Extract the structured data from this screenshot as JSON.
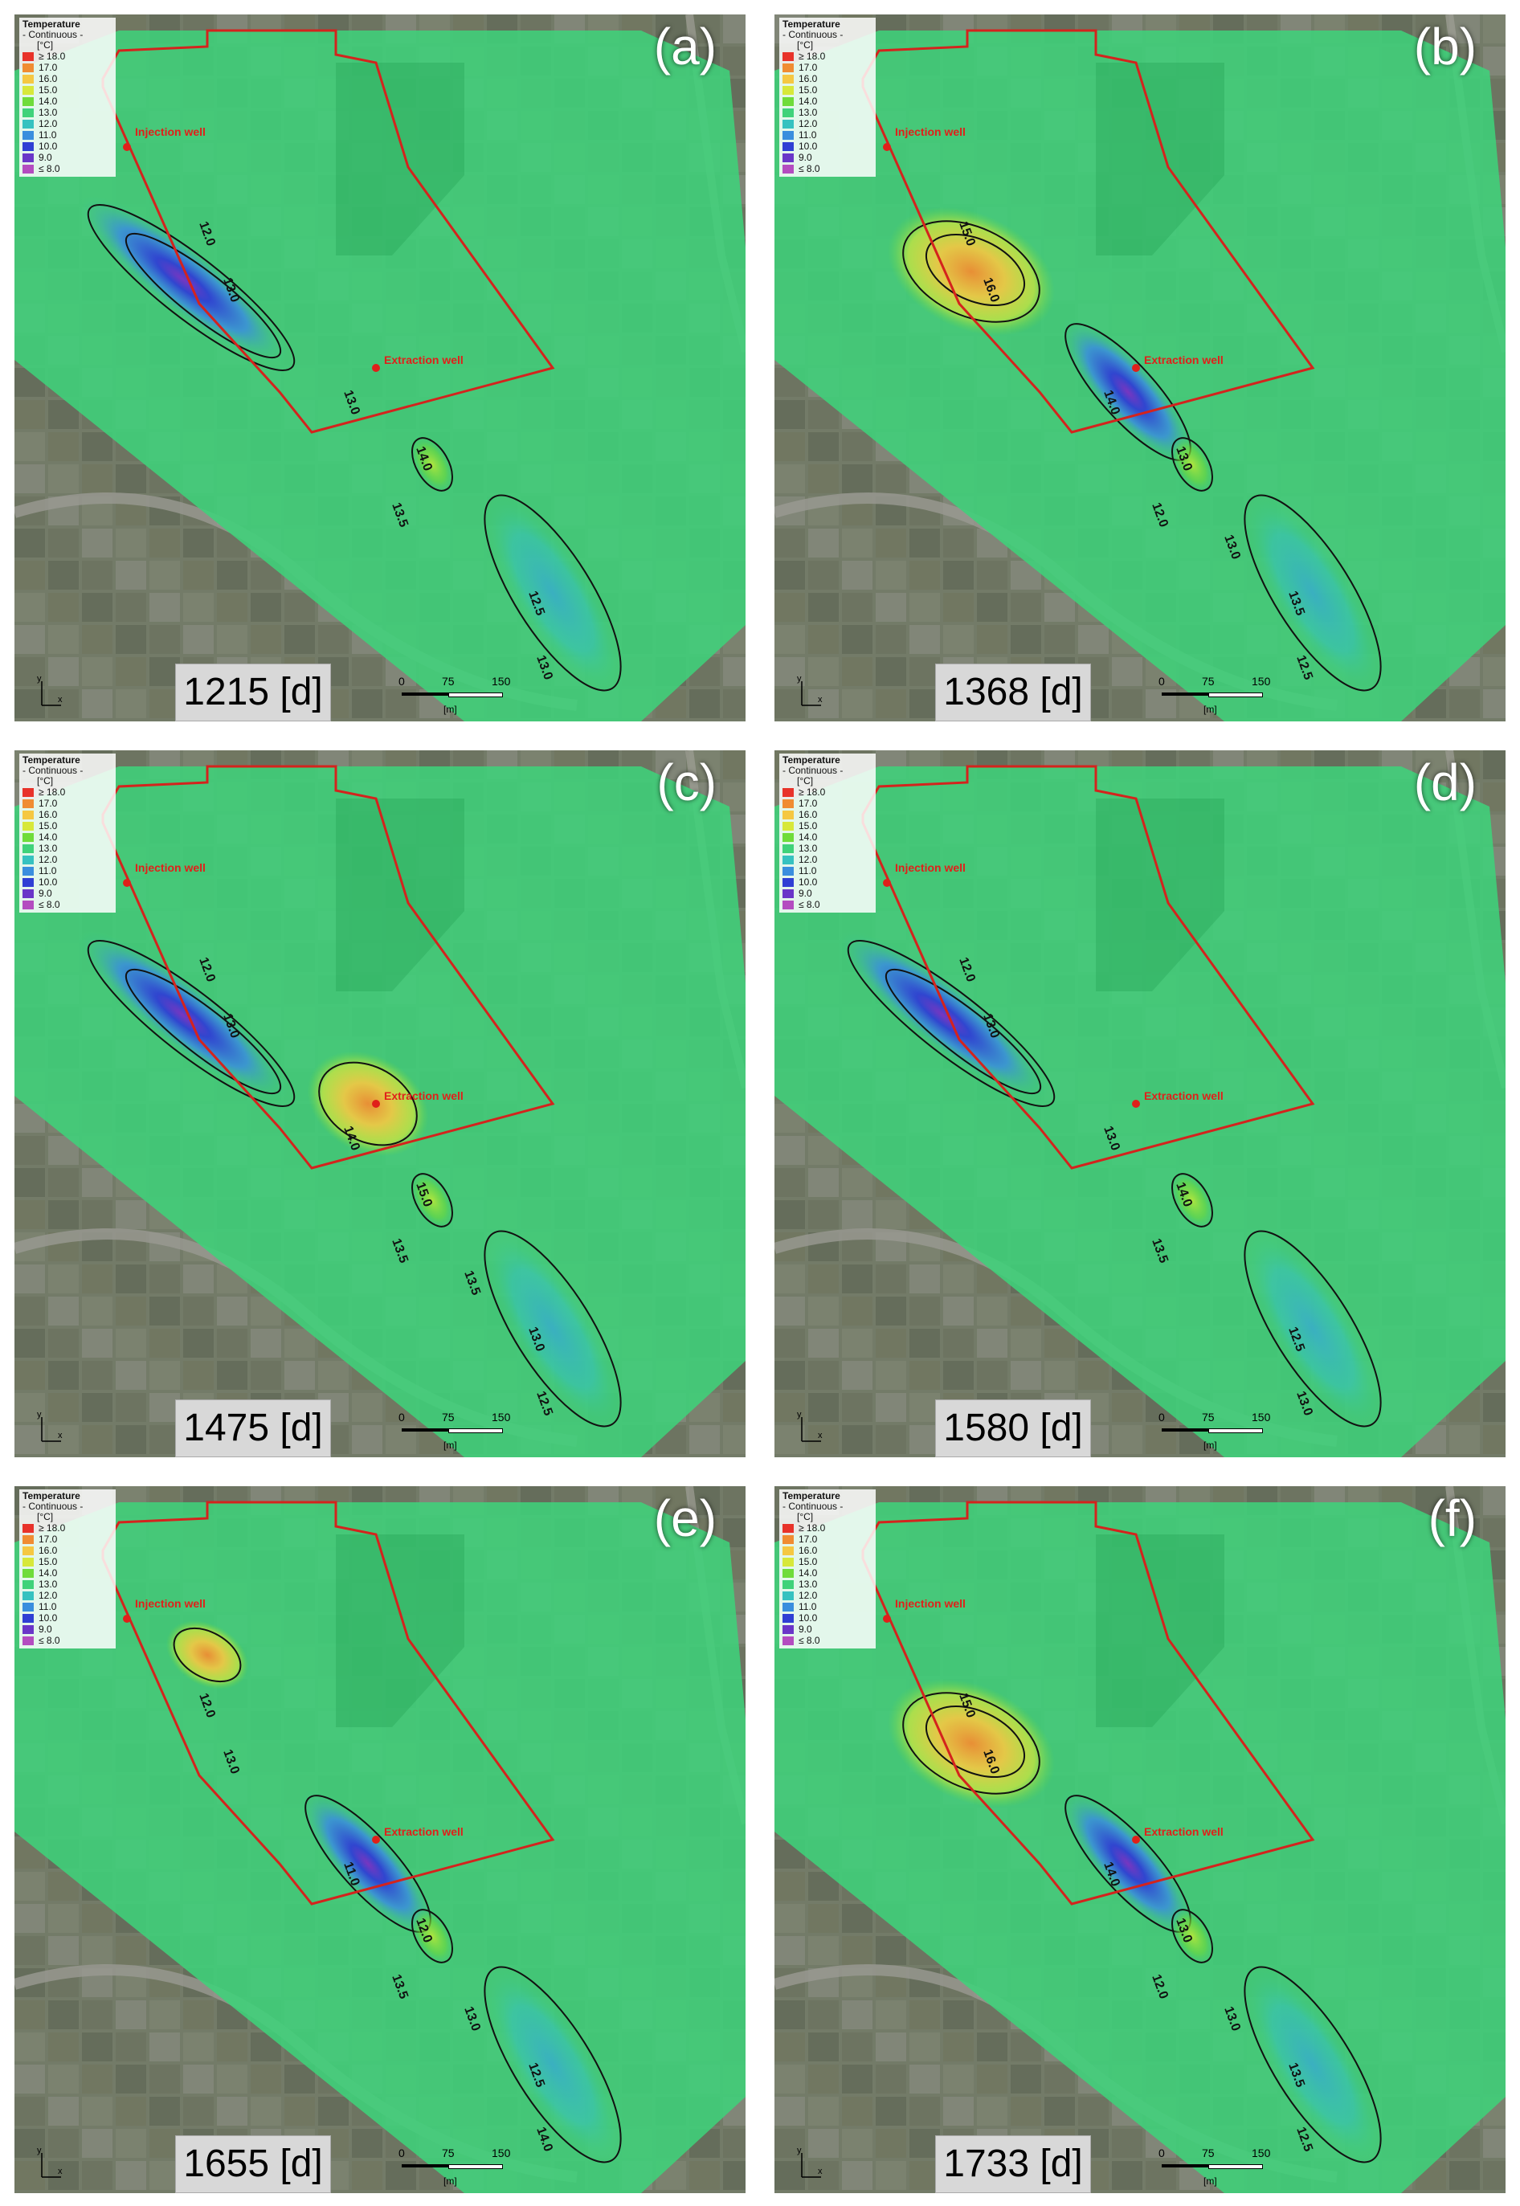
{
  "legend": {
    "title": "Temperature",
    "subtitle": "- Continuous -",
    "unit": "[°C]",
    "items": [
      {
        "label": "≥ 18.0",
        "color": "#e8322a"
      },
      {
        "label": "17.0",
        "color": "#f08c32"
      },
      {
        "label": "16.0",
        "color": "#f5c842"
      },
      {
        "label": "15.0",
        "color": "#d7e83a"
      },
      {
        "label": "14.0",
        "color": "#6fdc3a"
      },
      {
        "label": "13.0",
        "color": "#3fd27a"
      },
      {
        "label": "12.0",
        "color": "#36c2c0"
      },
      {
        "label": "11.0",
        "color": "#3a8ede"
      },
      {
        "label": "10.0",
        "color": "#2f3fd4"
      },
      {
        "label": "9.0",
        "color": "#6a36c8"
      },
      {
        "label": "≤ 8.0",
        "color": "#b44cc0"
      }
    ]
  },
  "injection_well_label": "Injection well",
  "extraction_well_label": "Extraction well",
  "scale_bar": {
    "ticks": [
      "0",
      "75",
      "150"
    ],
    "unit": "[m]"
  },
  "panels": [
    {
      "label": "(a)",
      "day": "1215 [d]",
      "injection_plume": "cold",
      "extraction_plume": "none",
      "contours": [
        "13.0",
        "12.0",
        "13.0",
        "14.0",
        "13.5",
        "13.0",
        "12.5"
      ]
    },
    {
      "label": "(b)",
      "day": "1368 [d]",
      "injection_plume": "warm",
      "extraction_plume": "cold",
      "contours": [
        "16.0",
        "15.0",
        "14.0",
        "13.0",
        "12.0",
        "12.5",
        "13.5",
        "13.0"
      ]
    },
    {
      "label": "(c)",
      "day": "1475 [d]",
      "injection_plume": "cold",
      "extraction_plume": "warm",
      "contours": [
        "13.0",
        "12.0",
        "14.0",
        "15.0",
        "13.5",
        "12.5",
        "13.0",
        "13.5"
      ]
    },
    {
      "label": "(d)",
      "day": "1580 [d]",
      "injection_plume": "cold",
      "extraction_plume": "none",
      "contours": [
        "13.0",
        "12.0",
        "13.0",
        "14.0",
        "13.5",
        "13.0",
        "12.5"
      ]
    },
    {
      "label": "(e)",
      "day": "1655 [d]",
      "injection_plume": "warm-small",
      "extraction_plume": "cold",
      "contours": [
        "13.0",
        "12.0",
        "11.0",
        "12.0",
        "13.5",
        "14.0",
        "12.5",
        "13.0"
      ]
    },
    {
      "label": "(f)",
      "day": "1733 [d]",
      "injection_plume": "warm",
      "extraction_plume": "cold",
      "contours": [
        "16.0",
        "15.0",
        "14.0",
        "13.0",
        "12.0",
        "12.5",
        "13.5",
        "13.0"
      ]
    }
  ]
}
